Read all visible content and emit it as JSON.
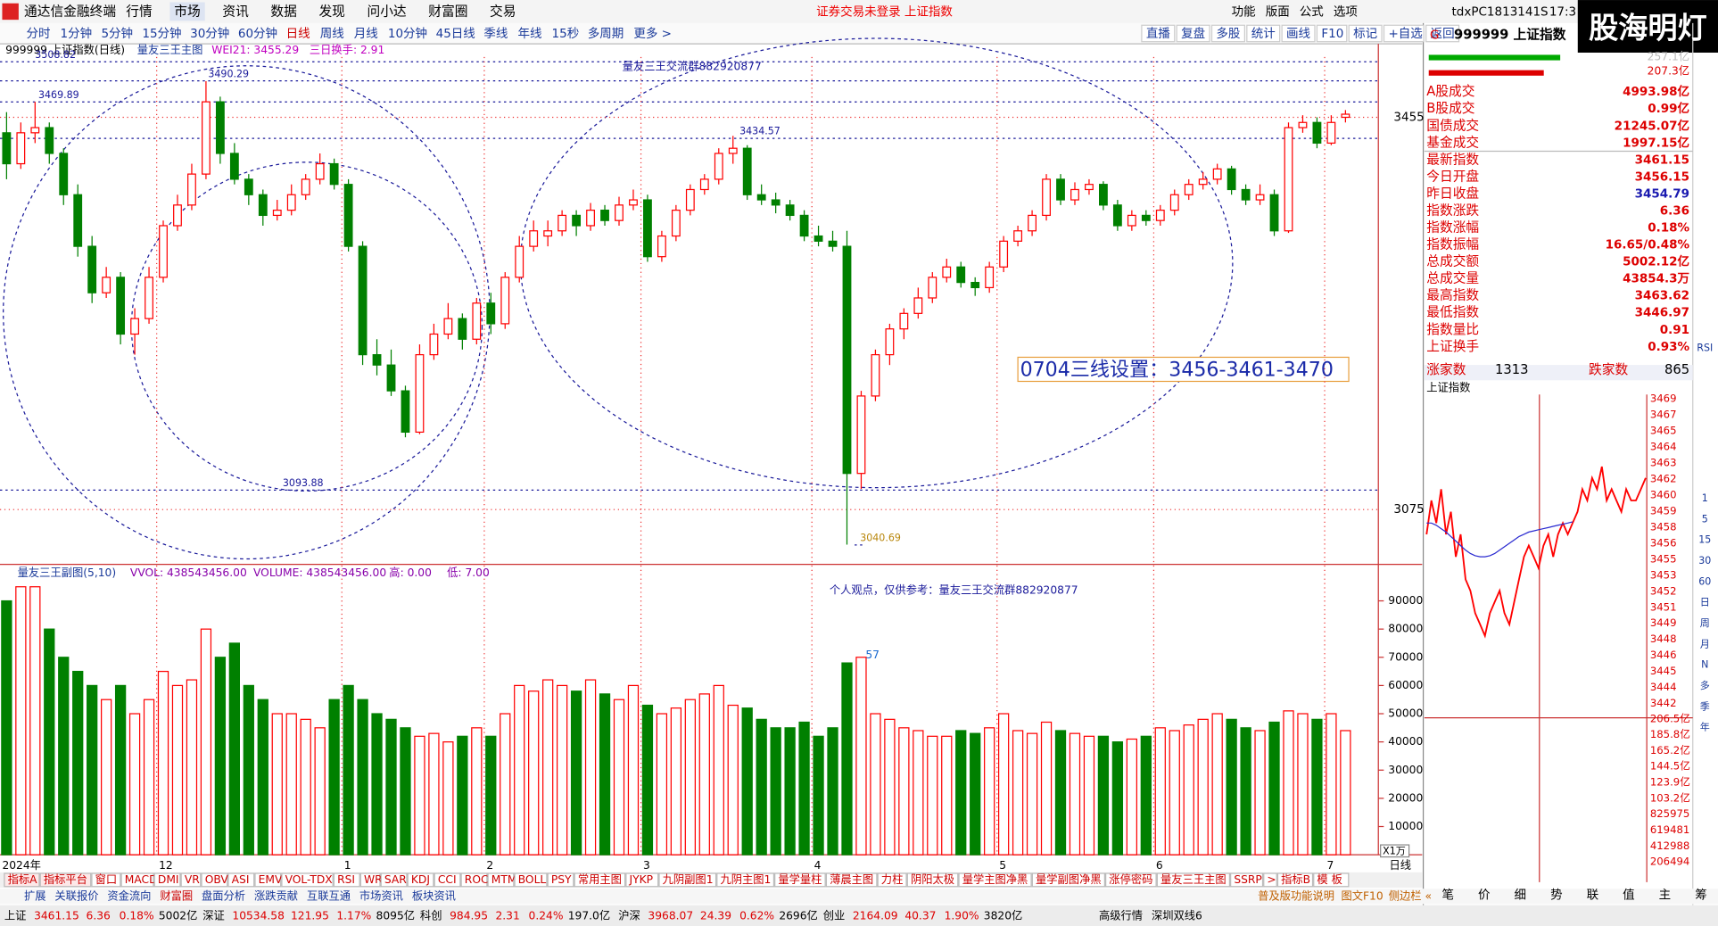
{
  "menu": {
    "app": "通达信金融终端",
    "items": [
      "行情",
      "市场",
      "资讯",
      "数据",
      "发现",
      "问小达",
      "财富圈",
      "交易"
    ],
    "notice": "证券交易未登录  上证指数",
    "right": [
      "功能",
      "版面",
      "公式",
      "选项"
    ],
    "user": "tdxPC1813141S",
    "time": "17:3",
    "brand": "股海明灯"
  },
  "periods": [
    "分时",
    "1分钟",
    "5分钟",
    "15分钟",
    "30分钟",
    "60分钟",
    "日线",
    "周线",
    "月线",
    "10分钟",
    "45日线",
    "季线",
    "年线",
    "15秒",
    "多周期",
    "更多 >"
  ],
  "tools": [
    "直播",
    "复盘",
    "多股",
    "统计",
    "画线",
    "F10",
    "标记",
    "+自选",
    "返回"
  ],
  "chart_data": [
    {
      "type": "candlestick",
      "header": [
        "999999 上证指数(日线)",
        "量友三王主图",
        "WEI21: 3455.29",
        "三日换手: 2.91"
      ],
      "group_note": "量友三王交流群882920877",
      "setting_note": "0704三线设置：3456-3461-3470",
      "up_color": "#ff0000",
      "down_color": "#008000",
      "ylim": [
        3021.9,
        3513.4
      ],
      "yticks": [
        3075,
        3455
      ],
      "levels": [
        3508.82,
        3490.29,
        3469.89,
        3434.57,
        3093.88,
        3040.69
      ],
      "categories": [
        "2024年",
        null,
        null,
        null,
        null,
        null,
        null,
        null,
        null,
        null,
        null,
        "12",
        null,
        null,
        null,
        null,
        null,
        null,
        null,
        null,
        null,
        null,
        null,
        null,
        "1",
        null,
        null,
        null,
        null,
        null,
        null,
        null,
        null,
        null,
        "2",
        null,
        null,
        null,
        null,
        null,
        null,
        null,
        null,
        null,
        null,
        "3",
        null,
        null,
        null,
        null,
        null,
        null,
        null,
        null,
        null,
        null,
        null,
        "4",
        null,
        null,
        null,
        null,
        null,
        null,
        null,
        null,
        null,
        null,
        null,
        null,
        "5",
        null,
        null,
        null,
        null,
        null,
        null,
        null,
        null,
        null,
        null,
        "6",
        null,
        null,
        null,
        null,
        null,
        null,
        null,
        null,
        null,
        null,
        null,
        "7",
        null
      ],
      "candles": [
        [
          3440,
          3460,
          3395,
          3410
        ],
        [
          3410,
          3450,
          3405,
          3440
        ],
        [
          3440,
          3470,
          3430,
          3445
        ],
        [
          3445,
          3450,
          3410,
          3420
        ],
        [
          3420,
          3425,
          3370,
          3380
        ],
        [
          3380,
          3390,
          3320,
          3330
        ],
        [
          3330,
          3340,
          3275,
          3285
        ],
        [
          3285,
          3310,
          3280,
          3300
        ],
        [
          3300,
          3305,
          3235,
          3245
        ],
        [
          3245,
          3270,
          3225,
          3260
        ],
        [
          3260,
          3310,
          3255,
          3300
        ],
        [
          3300,
          3355,
          3295,
          3350
        ],
        [
          3350,
          3380,
          3345,
          3370
        ],
        [
          3370,
          3410,
          3365,
          3400
        ],
        [
          3400,
          3490,
          3395,
          3470
        ],
        [
          3470,
          3475,
          3410,
          3420
        ],
        [
          3420,
          3430,
          3390,
          3395
        ],
        [
          3395,
          3400,
          3370,
          3380
        ],
        [
          3380,
          3385,
          3350,
          3360
        ],
        [
          3360,
          3375,
          3355,
          3365
        ],
        [
          3365,
          3390,
          3360,
          3380
        ],
        [
          3380,
          3400,
          3375,
          3395
        ],
        [
          3395,
          3420,
          3390,
          3410
        ],
        [
          3410,
          3415,
          3385,
          3390
        ],
        [
          3390,
          3395,
          3325,
          3330
        ],
        [
          3330,
          3335,
          3215,
          3225
        ],
        [
          3225,
          3240,
          3205,
          3215
        ],
        [
          3215,
          3230,
          3185,
          3190
        ],
        [
          3190,
          3195,
          3145,
          3150
        ],
        [
          3150,
          3235,
          3148,
          3225
        ],
        [
          3225,
          3255,
          3220,
          3245
        ],
        [
          3245,
          3275,
          3240,
          3260
        ],
        [
          3260,
          3265,
          3230,
          3240
        ],
        [
          3240,
          3280,
          3235,
          3275
        ],
        [
          3275,
          3285,
          3245,
          3255
        ],
        [
          3255,
          3305,
          3250,
          3300
        ],
        [
          3300,
          3340,
          3295,
          3330
        ],
        [
          3330,
          3355,
          3325,
          3345
        ],
        [
          3340,
          3355,
          3330,
          3345
        ],
        [
          3345,
          3365,
          3340,
          3360
        ],
        [
          3360,
          3365,
          3340,
          3350
        ],
        [
          3350,
          3372,
          3345,
          3365
        ],
        [
          3365,
          3370,
          3350,
          3355
        ],
        [
          3355,
          3378,
          3350,
          3370
        ],
        [
          3370,
          3385,
          3365,
          3375
        ],
        [
          3375,
          3380,
          3315,
          3320
        ],
        [
          3320,
          3345,
          3315,
          3340
        ],
        [
          3340,
          3370,
          3335,
          3365
        ],
        [
          3365,
          3390,
          3360,
          3385
        ],
        [
          3385,
          3400,
          3380,
          3395
        ],
        [
          3395,
          3425,
          3390,
          3420
        ],
        [
          3420,
          3437,
          3410,
          3425
        ],
        [
          3425,
          3428,
          3375,
          3380
        ],
        [
          3380,
          3390,
          3370,
          3375
        ],
        [
          3375,
          3382,
          3362,
          3370
        ],
        [
          3370,
          3375,
          3355,
          3360
        ],
        [
          3360,
          3365,
          3335,
          3340
        ],
        [
          3340,
          3350,
          3330,
          3335
        ],
        [
          3335,
          3345,
          3325,
          3330
        ],
        [
          3330,
          3345,
          3041,
          3110
        ],
        [
          3110,
          3190,
          3095,
          3185
        ],
        [
          3185,
          3230,
          3180,
          3225
        ],
        [
          3225,
          3255,
          3215,
          3250
        ],
        [
          3250,
          3270,
          3240,
          3265
        ],
        [
          3265,
          3290,
          3260,
          3280
        ],
        [
          3280,
          3305,
          3275,
          3300
        ],
        [
          3300,
          3318,
          3295,
          3310
        ],
        [
          3310,
          3315,
          3290,
          3295
        ],
        [
          3295,
          3300,
          3282,
          3290
        ],
        [
          3290,
          3315,
          3285,
          3310
        ],
        [
          3310,
          3340,
          3305,
          3335
        ],
        [
          3335,
          3350,
          3330,
          3345
        ],
        [
          3345,
          3365,
          3340,
          3360
        ],
        [
          3360,
          3400,
          3355,
          3395
        ],
        [
          3395,
          3400,
          3370,
          3375
        ],
        [
          3375,
          3392,
          3370,
          3385
        ],
        [
          3385,
          3395,
          3380,
          3390
        ],
        [
          3390,
          3393,
          3365,
          3370
        ],
        [
          3370,
          3375,
          3345,
          3350
        ],
        [
          3350,
          3365,
          3345,
          3360
        ],
        [
          3360,
          3365,
          3350,
          3355
        ],
        [
          3355,
          3370,
          3350,
          3365
        ],
        [
          3365,
          3385,
          3360,
          3380
        ],
        [
          3380,
          3395,
          3375,
          3390
        ],
        [
          3390,
          3402,
          3385,
          3395
        ],
        [
          3395,
          3410,
          3390,
          3405
        ],
        [
          3405,
          3408,
          3380,
          3385
        ],
        [
          3385,
          3390,
          3370,
          3375
        ],
        [
          3375,
          3390,
          3370,
          3380
        ],
        [
          3380,
          3385,
          3340,
          3345
        ],
        [
          3345,
          3450,
          3343,
          3445
        ],
        [
          3445,
          3457,
          3440,
          3450
        ],
        [
          3450,
          3455,
          3425,
          3430
        ],
        [
          3430,
          3457,
          3428,
          3450
        ],
        [
          3455,
          3462,
          3450,
          3458
        ]
      ]
    },
    {
      "type": "bar",
      "header": [
        "量友三王副图(5,10)",
        "VVOL: 438543456.00",
        "VOLUME: 438543456.00",
        "高: 0.00",
        "低: 7.00"
      ],
      "note": "个人观点，仅供参考：量友三王交流群882920877",
      "peak_label": "57",
      "unit": "X1万",
      "period": "日线",
      "ylim": [
        0,
        101000
      ],
      "yticks": [
        10000,
        20000,
        30000,
        40000,
        50000,
        60000,
        70000,
        80000,
        90000
      ],
      "values": [
        90000,
        95000,
        95000,
        80000,
        70000,
        65000,
        60000,
        55000,
        60000,
        50000,
        55000,
        65000,
        60000,
        62000,
        80000,
        70000,
        75000,
        60000,
        55000,
        50000,
        50000,
        48000,
        45000,
        55000,
        60000,
        55000,
        50000,
        48000,
        45000,
        42000,
        43000,
        40000,
        42000,
        45000,
        42000,
        50000,
        60000,
        58000,
        62000,
        60000,
        58000,
        62000,
        57000,
        55000,
        60000,
        53000,
        50000,
        52000,
        55000,
        57000,
        60000,
        53000,
        52000,
        48000,
        45000,
        45000,
        47000,
        42000,
        45000,
        68000,
        70000,
        50000,
        48000,
        45000,
        44000,
        42000,
        42000,
        44000,
        43000,
        45000,
        50000,
        44000,
        43000,
        47000,
        44000,
        43000,
        42000,
        42000,
        40000,
        41000,
        42000,
        45000,
        44000,
        46000,
        48000,
        50000,
        48000,
        45000,
        44000,
        47000,
        51000,
        50000,
        48000,
        50000,
        44000
      ]
    },
    {
      "type": "line",
      "title": "上证指数",
      "ylim": [
        3442,
        3469
      ],
      "axis_labels": [
        "3469",
        "3467",
        "3465",
        "3464",
        "3463",
        "3462",
        "3460",
        "3459",
        "3458",
        "3456",
        "3455",
        "3453",
        "3452",
        "3451",
        "3449",
        "3448",
        "3446",
        "3445",
        "3444",
        "3442"
      ],
      "volume_labels": [
        "206.5亿",
        "185.8亿",
        "165.2亿",
        "144.5亿",
        "123.9亿",
        "103.2亿",
        "825975",
        "619481",
        "412988",
        "206494"
      ],
      "series": [
        {
          "color": "#ff0000",
          "values": [
            3457,
            3460,
            3458,
            3461,
            3457,
            3459,
            3455,
            3457,
            3453,
            3452,
            3450,
            3449,
            3448,
            3450,
            3451,
            3452,
            3450,
            3449,
            3451,
            3453,
            3455,
            3456,
            3455,
            3454,
            3456,
            3457,
            3455,
            3457,
            3458,
            3457,
            3458,
            3459,
            3461,
            3460,
            3462,
            3461,
            3463,
            3460,
            3461,
            3460,
            3459,
            3461,
            3460,
            3460,
            3461,
            3462
          ]
        },
        {
          "color": "#2a2ad0",
          "values": [
            3458,
            3458,
            3457.8,
            3457.5,
            3457.2,
            3456.8,
            3456.4,
            3456,
            3455.6,
            3455.3,
            3455.1,
            3455,
            3455,
            3455.1,
            3455.3,
            3455.6,
            3455.9,
            3456.2,
            3456.5,
            3456.8,
            3457,
            3457.2,
            3457.3,
            3457.4,
            3457.5,
            3457.6,
            3457.7,
            3457.8,
            3457.9,
            3458,
            3458.1
          ]
        }
      ]
    }
  ],
  "quote": {
    "code": "999999 上证指数",
    "g": "G",
    "bars": [
      "257.1亿",
      "207.3亿"
    ],
    "rows": [
      [
        "A股成交",
        "4993.98亿"
      ],
      [
        "B股成交",
        "0.99亿"
      ],
      [
        "国债成交",
        "21245.07亿"
      ],
      [
        "基金成交",
        "1997.15亿"
      ],
      [
        "最新指数",
        "3461.15"
      ],
      [
        "今日开盘",
        "3456.15"
      ],
      [
        "昨日收盘",
        "3454.79"
      ],
      [
        "指数涨跌",
        "6.36"
      ],
      [
        "指数涨幅",
        "0.18%"
      ],
      [
        "指数振幅",
        "16.65/0.48%"
      ],
      [
        "总成交额",
        "5002.12亿"
      ],
      [
        "总成交量",
        "43854.3万"
      ],
      [
        "最高指数",
        "3463.62"
      ],
      [
        "最低指数",
        "3446.97"
      ],
      [
        "指数量比",
        "0.91"
      ],
      [
        "上证换手",
        "0.93%"
      ]
    ],
    "breadth": [
      "涨家数",
      "1313",
      "跌家数",
      "865"
    ],
    "tabs": [
      "笔",
      "价",
      "细",
      "势",
      "联",
      "值",
      "主",
      "筹"
    ],
    "side": [
      "RSI",
      "1",
      "5",
      "15",
      "30",
      "60",
      "日",
      "周",
      "月",
      "N",
      "多",
      "季",
      "年"
    ]
  },
  "indicators": [
    "指标A",
    "指标平台",
    "窗口",
    "MACD",
    "DMI",
    "VR",
    "OBV",
    "ASI",
    "EMV",
    "VOL-TDX",
    "RSI",
    "WR",
    "SAR",
    "KDJ",
    "CCI",
    "ROC",
    "MTM",
    "BOLL",
    "PSY",
    "常用主图",
    "JYKP",
    "九阴副图1",
    "九阴主图1",
    "量学量柱",
    "薄晨主图",
    "力柱",
    "阴阳太极",
    "量学主图净黑",
    "量学副图净黑",
    "涨停密码",
    "量友三王主图",
    "SSRP",
    ">",
    "指标B",
    "模 板"
  ],
  "panels": [
    "扩展",
    "关联报价",
    "资金流向",
    "财富圈",
    "盘面分析",
    "涨跌贡献",
    "互联互通",
    "市场资讯",
    "板块资讯"
  ],
  "panel_right": [
    "普及版功能说明",
    "图文F10",
    "侧边栏 «"
  ],
  "status": [
    "上证",
    "3461.15",
    "6.36",
    "0.18%",
    "5002亿",
    "深证",
    "10534.58",
    "121.95",
    "1.17%",
    "8095亿",
    "科创",
    "984.95",
    "2.31",
    "0.24%",
    "197.0亿",
    "沪深",
    "3968.07",
    "24.39",
    "0.62%",
    "2696亿",
    "创业",
    "2164.09",
    "40.37",
    "1.90%",
    "3820亿"
  ],
  "status_right": [
    "高级行情",
    "深圳双线6"
  ]
}
